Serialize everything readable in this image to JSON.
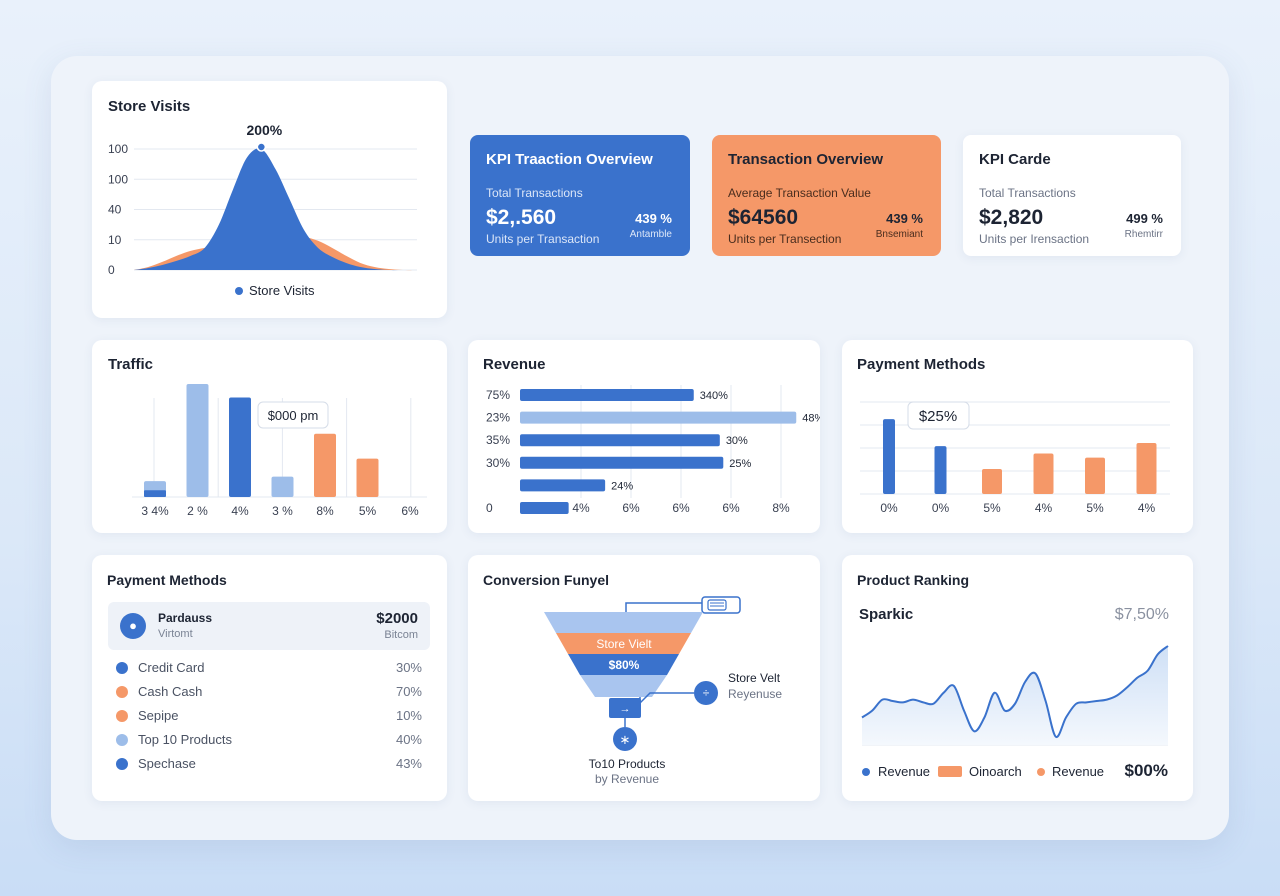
{
  "colors": {
    "blue": "#3a72cc",
    "light_blue": "#9dbde9",
    "orange": "#f59868",
    "grid": "#e3e8f0"
  },
  "store_visits": {
    "title": "Store Visits",
    "peak_label": "200%",
    "legend": "Store Visits",
    "chart_data": {
      "type": "area",
      "y_tick_labels": [
        "100",
        "100",
        "40",
        "10",
        "0"
      ],
      "series": [
        {
          "name": "Store Visits",
          "color": "#3a72cc",
          "x": [
            0,
            1,
            2,
            3,
            4,
            5,
            6,
            7,
            8,
            9,
            10,
            11,
            12,
            13,
            14,
            15,
            16,
            17,
            18,
            19,
            20
          ],
          "values": [
            0,
            2,
            5,
            9,
            14,
            22,
            45,
            80,
            112,
            120,
            100,
            70,
            40,
            22,
            13,
            7,
            3,
            1,
            0,
            0,
            0
          ]
        },
        {
          "color": "#f59868",
          "x": [
            0,
            1,
            2,
            3,
            4,
            5,
            6,
            7,
            8,
            9,
            10,
            11,
            12,
            13,
            14,
            15,
            16,
            17,
            18,
            19,
            20
          ],
          "values": [
            0,
            3,
            8,
            14,
            19,
            22,
            24,
            26,
            28,
            30,
            32,
            34,
            33,
            29,
            22,
            14,
            7,
            3,
            1,
            0,
            0
          ]
        }
      ]
    }
  },
  "kpis": [
    {
      "title": "KPI Traaction Overview",
      "label": "Total Transactions",
      "value": "$2,.560",
      "sub": "Units per Transaction",
      "pct": "439 %",
      "note": "Antamble"
    },
    {
      "title": "Transaction Overview",
      "label": "Average Transaction Value",
      "value": "$64560",
      "sub": "Units per Transection",
      "pct": "439 %",
      "note": "Bnsemiant"
    },
    {
      "title": "KPI Carde",
      "label": "Total Transactions",
      "value": "$2,820",
      "sub": "Units per Irensaction",
      "pct": "499 %",
      "note": "Rhemtirr"
    }
  ],
  "traffic": {
    "title": "Traffic",
    "tooltip": "$000 pm",
    "chart_data": {
      "type": "bar",
      "categories": [
        "3 4%",
        "2 %",
        "4%",
        "3 %",
        "8%",
        "5%",
        "6%"
      ],
      "series": [
        {
          "values": [
            7,
            50,
            44,
            9,
            28,
            17,
            0
          ],
          "colors": [
            "#9dbde9",
            "#9dbde9",
            "#3a72cc",
            "#9dbde9",
            "#f59868",
            "#f59868",
            "#f59868"
          ]
        },
        {
          "values": [
            3,
            0,
            0,
            0,
            0,
            0,
            0
          ],
          "colors": [
            "#3a72cc"
          ]
        }
      ],
      "ylim": [
        0,
        50
      ]
    }
  },
  "revenue": {
    "title": "Revenue",
    "chart_data": {
      "type": "bar",
      "orientation": "horizontal",
      "categories": [
        "75%",
        "23%",
        "35%",
        "30%",
        "",
        "0"
      ],
      "values": [
        100,
        159,
        115,
        117,
        49,
        28
      ],
      "data_labels": [
        "340%",
        "48%",
        "30%",
        "25%",
        "24%",
        ""
      ],
      "colors": [
        "#3a72cc",
        "#9dbde9",
        "#3a72cc",
        "#3a72cc",
        "#3a72cc",
        "#3a72cc"
      ],
      "x_tick_labels": [
        "4%",
        "6%",
        "6%",
        "6%",
        "8%"
      ],
      "xlim": [
        0,
        160
      ]
    }
  },
  "payment_chart": {
    "title": "Payment Methods",
    "tooltip": "$25%",
    "chart_data": {
      "type": "bar",
      "categories": [
        "0%",
        "0%",
        "5%",
        "4%",
        "5%",
        "4%"
      ],
      "values": [
        72,
        46,
        24,
        39,
        35,
        49
      ],
      "colors": [
        "#3a72cc",
        "#3a72cc",
        "#f59868",
        "#f59868",
        "#f59868",
        "#f59868"
      ],
      "ylim": [
        0,
        100
      ]
    }
  },
  "payment_list": {
    "title": "Payment Methods",
    "head_name": "Pardauss",
    "head_sub": "Virtomt",
    "head_amount": "$2000",
    "head_amount_sub": "Bitcom",
    "head_icon": "car-icon",
    "rows": [
      {
        "label": "Credit Card",
        "pct": "30%",
        "color": "#3a72cc"
      },
      {
        "label": "Cash Cash",
        "pct": "70%",
        "color": "#f59868"
      },
      {
        "label": "Sepipe",
        "pct": "10%",
        "color": "#f59868"
      },
      {
        "label": "Top 10 Products",
        "pct": "40%",
        "color": "#9dbde9"
      },
      {
        "label": "Spechase",
        "pct": "43%",
        "color": "#3a72cc"
      }
    ]
  },
  "funnel": {
    "title": "Conversion Funyel",
    "stage1": "Store Vielt",
    "stage2": "$80%",
    "side_title": "Store Velt",
    "side_sub": "Reyenuse",
    "bottom_1": "To10 Products",
    "bottom_2": "by Revenue"
  },
  "ranking": {
    "title": "Product Ranking",
    "subtitle": "Sparkic",
    "value": "$7,50%",
    "legend": [
      {
        "label": "Revenue",
        "color": "#3a72cc",
        "shape": "dot"
      },
      {
        "label": "Oinoarch",
        "color": "#f59868",
        "shape": "rect"
      },
      {
        "label": "Revenue",
        "color": "#f59868",
        "shape": "dot"
      }
    ],
    "total": "$00%",
    "chart_data": {
      "type": "line",
      "x": [
        0,
        1,
        2,
        3,
        4,
        5,
        6,
        7,
        8,
        9,
        10,
        11,
        12,
        13,
        14,
        15,
        16,
        17,
        18,
        19,
        20,
        21,
        22,
        23,
        24,
        25,
        26,
        27,
        28,
        29,
        30
      ],
      "values": [
        20,
        25,
        33,
        32,
        31,
        33,
        31,
        30,
        38,
        43,
        25,
        10,
        20,
        38,
        25,
        30,
        46,
        52,
        32,
        6,
        20,
        30,
        31,
        32,
        33,
        36,
        42,
        49,
        54,
        66,
        72
      ],
      "ylim": [
        0,
        80
      ]
    }
  }
}
